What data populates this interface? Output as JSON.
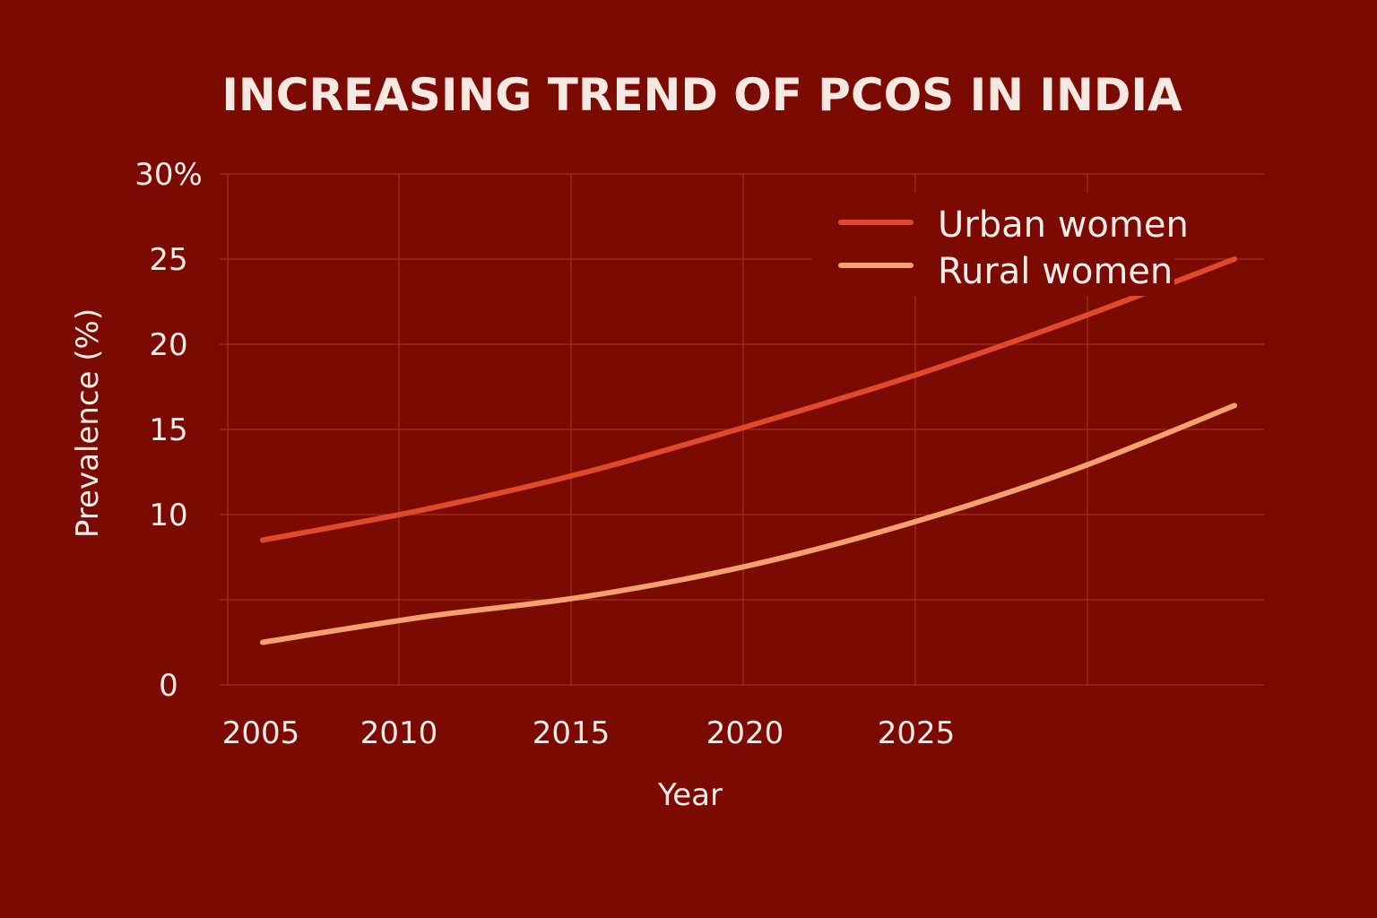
{
  "chart_data": {
    "type": "line",
    "title": "INCREASING TREND OF PCOS IN INDIA",
    "xlabel": "Year",
    "ylabel": "Prevalence (%)",
    "x_ticks": [
      2005,
      2010,
      2015,
      2020,
      2025
    ],
    "x_tick_labels": [
      "2005",
      "2010",
      "2015",
      "2020",
      "2025"
    ],
    "y_ticks": [
      0,
      5,
      10,
      15,
      20,
      25,
      30
    ],
    "y_tick_labels": [
      "0",
      "",
      "10",
      "15",
      "20",
      "25",
      "30%"
    ],
    "xlim": [
      2005,
      2035
    ],
    "ylim": [
      0,
      30
    ],
    "grid": true,
    "legend_position": "top-right",
    "series": [
      {
        "name": "Urban women",
        "color": "#de4a2b",
        "x": [
          2005,
          2010,
          2015,
          2020,
          2025,
          2030,
          2035
        ],
        "y": [
          8.5,
          10.3,
          12.5,
          15.2,
          18.1,
          21.4,
          25.0
        ]
      },
      {
        "name": "Rural women",
        "color": "#f6a070",
        "x": [
          2005,
          2010,
          2015,
          2020,
          2025,
          2030,
          2035
        ],
        "y": [
          2.5,
          4.0,
          5.2,
          7.0,
          9.5,
          12.6,
          16.4
        ]
      }
    ]
  }
}
